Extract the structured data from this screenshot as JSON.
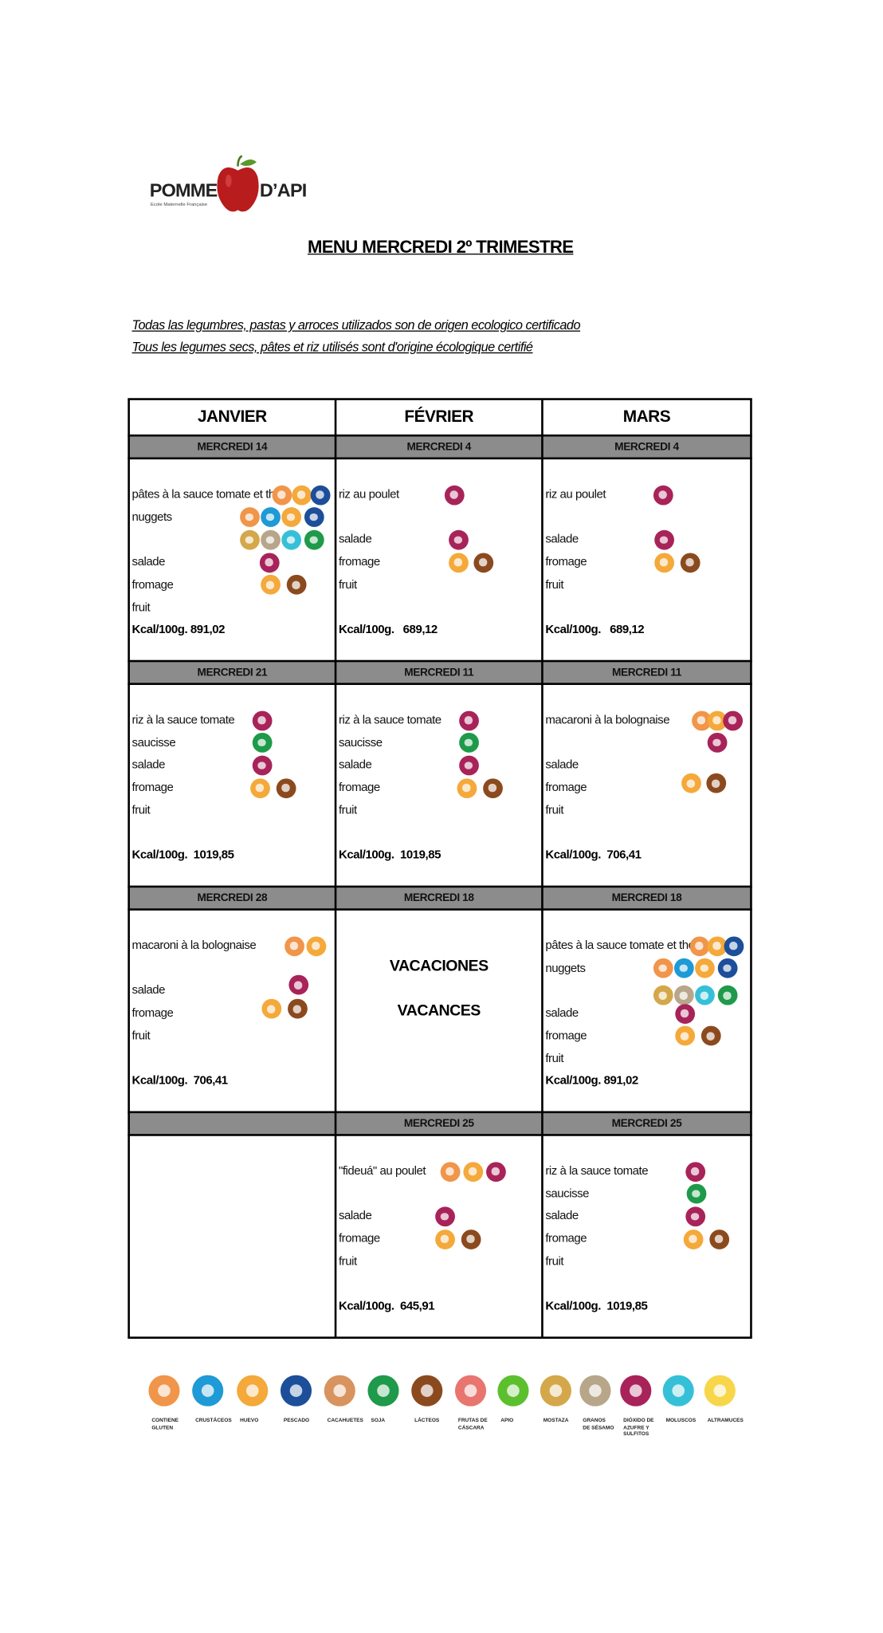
{
  "header": {
    "logo_left": "POMME",
    "logo_right": "D’API",
    "logo_tagline": "Ecole Maternelle Française",
    "title": "MENU MERCREDI 2º TRIMESTRE"
  },
  "notes": [
    "Todas las legumbres, pastas y arroces utilizados son de origen ecologico certificado",
    "Tous les legumes secs, pâtes et riz utilisés sont d'origine écologique certifié"
  ],
  "table": {
    "months": [
      "JANVIER",
      "FÉVRIER",
      "MARS"
    ],
    "rows": [
      {
        "cells": [
          {
            "day": "MERCREDI 14",
            "items": [
              "pâtes à la sauce tomate et thon",
              "nuggets",
              "salade",
              "fromage",
              "fruit"
            ],
            "kcal": "Kcal/100g. 891,02"
          },
          {
            "day": "MERCREDI 4",
            "items": [
              "riz au poulet",
              "salade",
              "fromage",
              "fruit"
            ],
            "kcal": "Kcal/100g.   689,12"
          },
          {
            "day": "MERCREDI 4",
            "items": [
              "riz au poulet",
              "salade",
              "fromage",
              "fruit"
            ],
            "kcal": "Kcal/100g.   689,12"
          }
        ]
      },
      {
        "cells": [
          {
            "day": "MERCREDI 21",
            "items": [
              "riz à la sauce tomate",
              "saucisse",
              "salade",
              "fromage",
              "fruit"
            ],
            "kcal": "Kcal/100g.  1019,85"
          },
          {
            "day": "MERCREDI 11",
            "items": [
              "riz à la sauce tomate",
              "saucisse",
              "salade",
              "fromage",
              "fruit"
            ],
            "kcal": "Kcal/100g.  1019,85"
          },
          {
            "day": "MERCREDI 11",
            "items": [
              "macaroni à la bolognaise",
              "salade",
              "fromage",
              "fruit"
            ],
            "kcal": "Kcal/100g.  706,41"
          }
        ]
      },
      {
        "cells": [
          {
            "day": "MERCREDI 28",
            "items": [
              "macaroni à la bolognaise",
              "salade",
              "fromage",
              "fruit"
            ],
            "kcal": "Kcal/100g.  706,41"
          },
          {
            "day": "MERCREDI 18",
            "notes": [
              "VACACIONES",
              "VACANCES"
            ]
          },
          {
            "day": "MERCREDI 18",
            "items": [
              "pâtes à la sauce tomate et thon",
              "nuggets",
              "salade",
              "fromage",
              "fruit"
            ],
            "kcal": "Kcal/100g. 891,02"
          }
        ]
      },
      {
        "cells": [
          null,
          {
            "day": "MERCREDI 25",
            "items": [
              "\"fideuá\" au poulet",
              "salade",
              "fromage",
              "fruit"
            ],
            "kcal": "Kcal/100g.  645,91"
          },
          {
            "day": "MERCREDI 25",
            "items": [
              "riz à la sauce tomate",
              "saucisse",
              "salade",
              "fromage",
              "fruit"
            ],
            "kcal": "Kcal/100g.  1019,85"
          }
        ]
      }
    ]
  },
  "legend": [
    "CONTIENE GLUTEN",
    "CRUSTÁCEOS",
    "HUEVO",
    "PESCADO",
    "CACAHUETES",
    "SOJA",
    "LÁCTEOS",
    "FRUTAS DE CÁSCARA",
    "APIO",
    "MOSTAZA",
    "GRANOS DE SÉSAMO",
    "DIÓXIDO DE AZUFRE Y SULFITOS",
    "MOLUSCOS",
    "ALTRAMUCES"
  ]
}
